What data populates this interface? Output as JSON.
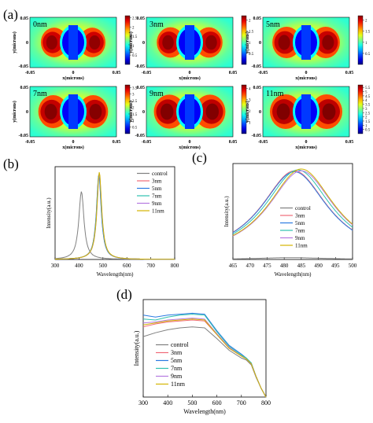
{
  "panel_letters": {
    "a": "(a)",
    "b": "(b)",
    "c": "(c)",
    "d": "(d)"
  },
  "colors": {
    "control": "#808080",
    "3nm": "#f06a78",
    "5nm": "#2a7ae2",
    "7nm": "#2fc0b0",
    "9nm": "#b478e0",
    "11nm": "#d4b400",
    "map_low": "#1a2bd8",
    "map_mid": "#4ee0c8",
    "map_high": "#d81010"
  },
  "chart_data": [
    {
      "type": "heatmap",
      "panel": "(a)",
      "xlabel": "x(microns)",
      "ylabel": "y(microns)",
      "x_ticks": [
        "-0.05",
        "0",
        "0.05"
      ],
      "y_ticks": [
        "0.05",
        "0",
        "-0.05"
      ],
      "xlim": [
        -0.05,
        0.05
      ],
      "ylim": [
        -0.05,
        0.05
      ],
      "colormap": "jet",
      "maps": [
        {
          "label": "0nm",
          "cbar_ticks": [
            "2.5",
            "2",
            "1.5",
            "1",
            "0.5"
          ],
          "cbar_max": 2.6,
          "intensity": 0.55
        },
        {
          "label": "3nm",
          "cbar_ticks": [
            "2",
            "1.5",
            "1",
            "0.5"
          ],
          "cbar_max": 2.2,
          "intensity": 0.62
        },
        {
          "label": "5nm",
          "cbar_ticks": [
            "2",
            "1.5",
            "1",
            "0.5"
          ],
          "cbar_max": 2.2,
          "intensity": 0.72
        },
        {
          "label": "7nm",
          "cbar_ticks": [
            "3.5",
            "3",
            "2.5",
            "2",
            "1.5",
            "1",
            "0.5"
          ],
          "cbar_max": 3.7,
          "intensity": 0.85
        },
        {
          "label": "9nm",
          "cbar_ticks": [
            "4",
            "3",
            "2",
            "1"
          ],
          "cbar_max": 4.3,
          "intensity": 0.95
        },
        {
          "label": "11nm",
          "cbar_ticks": [
            "5.5",
            "5",
            "4.5",
            "4",
            "3.5",
            "3",
            "2.5",
            "2",
            "1.5",
            "1",
            "0.5"
          ],
          "cbar_max": 5.8,
          "intensity": 1.0
        }
      ]
    },
    {
      "type": "line",
      "panel": "(b)",
      "xlabel": "Wavelength(nm)",
      "ylabel": "Intensity(a.u.)",
      "xlim": [
        300,
        800
      ],
      "x_ticks": [
        300,
        400,
        500,
        600,
        700,
        800
      ],
      "ylim": [
        0,
        1.05
      ],
      "legend": "top-right",
      "series": [
        {
          "name": "control",
          "peak": 410,
          "width": 13,
          "amp": 0.77
        },
        {
          "name": "3nm",
          "peak": 483,
          "width": 12,
          "amp": 0.97
        },
        {
          "name": "5nm",
          "peak": 483,
          "width": 12,
          "amp": 0.96
        },
        {
          "name": "7nm",
          "peak": 484,
          "width": 12,
          "amp": 0.98
        },
        {
          "name": "9nm",
          "peak": 485,
          "width": 12,
          "amp": 0.97
        },
        {
          "name": "11nm",
          "peak": 485,
          "width": 12,
          "amp": 0.99
        }
      ]
    },
    {
      "type": "line",
      "panel": "(c)",
      "xlabel": "Wavelength(nm)",
      "ylabel": "Intensity(a.u.)",
      "xlim": [
        465,
        500
      ],
      "x_ticks": [
        465,
        470,
        475,
        480,
        485,
        490,
        495,
        500
      ],
      "ylim": [
        0,
        1.05
      ],
      "legend": "bottom-center",
      "series": [
        {
          "name": "control",
          "peak": 482,
          "width": 12,
          "amp": 0.02
        },
        {
          "name": "3nm",
          "peak": 483,
          "width": 12,
          "amp": 0.97
        },
        {
          "name": "5nm",
          "peak": 483,
          "width": 12,
          "amp": 0.96
        },
        {
          "name": "7nm",
          "peak": 484,
          "width": 12,
          "amp": 0.98
        },
        {
          "name": "9nm",
          "peak": 485,
          "width": 12,
          "amp": 0.97
        },
        {
          "name": "11nm",
          "peak": 485,
          "width": 12,
          "amp": 0.99
        }
      ]
    },
    {
      "type": "line",
      "panel": "(d)",
      "xlabel": "Wavelength(nm)",
      "ylabel": "Intensity(a.u.)",
      "xlim": [
        300,
        800
      ],
      "x_ticks": [
        300,
        400,
        500,
        600,
        700,
        800
      ],
      "ylim": [
        0,
        1
      ],
      "legend": "bottom-left",
      "series": [
        {
          "name": "control",
          "x": [
            300,
            350,
            400,
            450,
            500,
            550,
            600,
            650,
            700,
            720,
            740,
            760,
            780,
            800
          ],
          "y": [
            0.62,
            0.66,
            0.69,
            0.71,
            0.72,
            0.71,
            0.6,
            0.48,
            0.4,
            0.38,
            0.33,
            0.2,
            0.09,
            0.0
          ]
        },
        {
          "name": "3nm",
          "x": [
            300,
            350,
            400,
            450,
            500,
            550,
            600,
            650,
            700,
            720,
            740,
            760,
            780,
            800
          ],
          "y": [
            0.72,
            0.75,
            0.77,
            0.78,
            0.79,
            0.78,
            0.64,
            0.5,
            0.42,
            0.39,
            0.34,
            0.21,
            0.09,
            0.0
          ]
        },
        {
          "name": "5nm",
          "x": [
            300,
            350,
            400,
            450,
            500,
            550,
            600,
            650,
            700,
            720,
            740,
            760,
            780,
            800
          ],
          "y": [
            0.84,
            0.82,
            0.84,
            0.85,
            0.86,
            0.85,
            0.68,
            0.53,
            0.44,
            0.4,
            0.35,
            0.21,
            0.09,
            0.0
          ]
        },
        {
          "name": "7nm",
          "x": [
            300,
            350,
            400,
            450,
            500,
            550,
            600,
            650,
            700,
            720,
            740,
            760,
            780,
            800
          ],
          "y": [
            0.8,
            0.79,
            0.82,
            0.84,
            0.85,
            0.84,
            0.67,
            0.52,
            0.43,
            0.4,
            0.35,
            0.21,
            0.09,
            0.0
          ]
        },
        {
          "name": "9nm",
          "x": [
            300,
            350,
            400,
            450,
            500,
            550,
            600,
            650,
            700,
            720,
            740,
            760,
            780,
            800
          ],
          "y": [
            0.76,
            0.77,
            0.79,
            0.8,
            0.81,
            0.8,
            0.65,
            0.51,
            0.42,
            0.39,
            0.34,
            0.21,
            0.09,
            0.0
          ]
        },
        {
          "name": "11nm",
          "x": [
            300,
            350,
            400,
            450,
            500,
            550,
            600,
            650,
            700,
            720,
            740,
            760,
            780,
            800
          ],
          "y": [
            0.74,
            0.76,
            0.78,
            0.79,
            0.8,
            0.79,
            0.64,
            0.5,
            0.42,
            0.39,
            0.34,
            0.21,
            0.09,
            0.0
          ]
        }
      ]
    }
  ]
}
